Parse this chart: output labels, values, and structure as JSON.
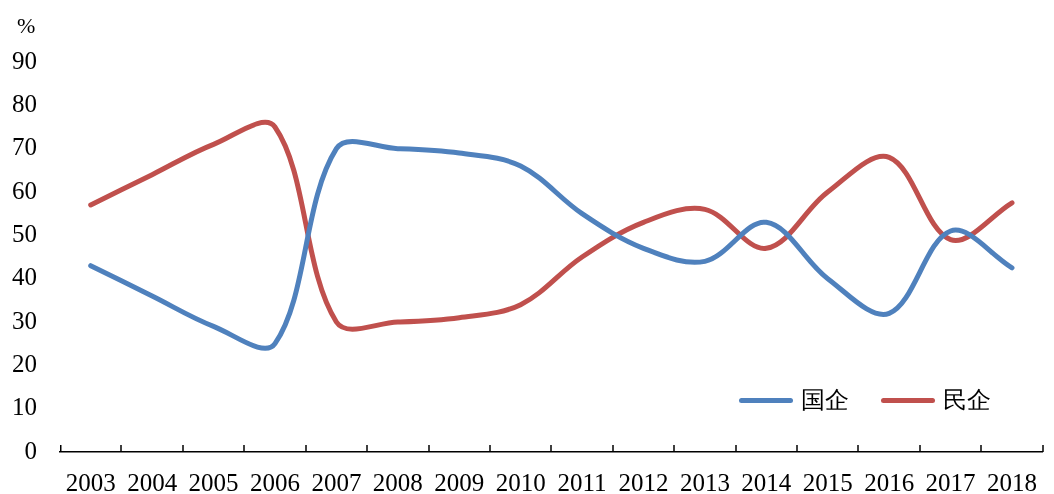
{
  "chart_data": {
    "type": "line",
    "ylabel": "%",
    "categories": [
      "2003",
      "2004",
      "2005",
      "2006",
      "2007",
      "2008",
      "2009",
      "2010",
      "2011",
      "2012",
      "2013",
      "2014",
      "2015",
      "2016",
      "2017",
      "2018"
    ],
    "series": [
      {
        "name": "国企",
        "color": "#4f81bd",
        "values": [
          43,
          36,
          29,
          25,
          70,
          70,
          69,
          66,
          55,
          47,
          44,
          53,
          40,
          32,
          51,
          42.5
        ]
      },
      {
        "name": "民企",
        "color": "#c0504d",
        "values": [
          57,
          64,
          71,
          75,
          30,
          30,
          31,
          34,
          45,
          53,
          56,
          47,
          60,
          68,
          49,
          57.5
        ]
      }
    ],
    "ylim": [
      0,
      90
    ],
    "yticks": [
      0,
      10,
      20,
      30,
      40,
      50,
      60,
      70,
      80,
      90
    ],
    "grid": false,
    "legend": "bottom right",
    "marker": "none",
    "line_style": "solid"
  }
}
